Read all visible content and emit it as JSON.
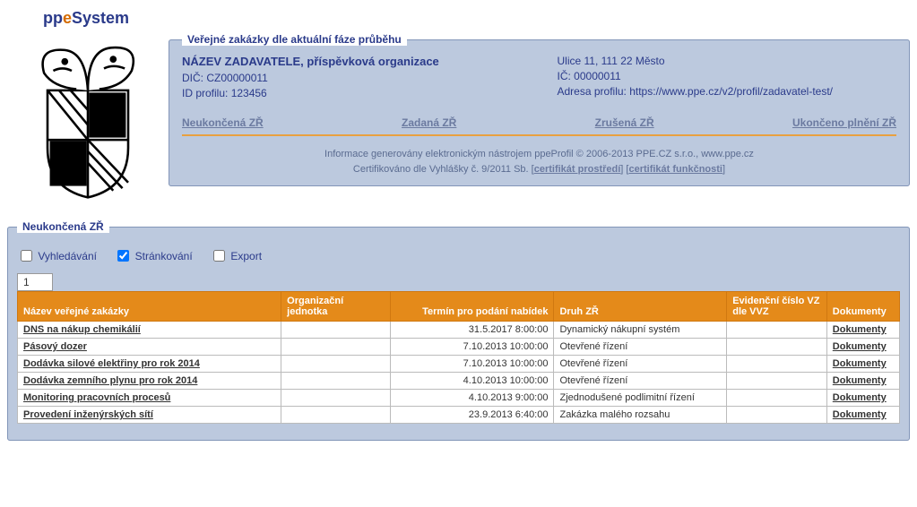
{
  "logo": {
    "p1": "pp",
    "e": "e",
    "p2": "System"
  },
  "panels": {
    "header_legend": "Veřejné zakázky dle aktuální fáze průběhu",
    "list_legend": "Neukončená ZŘ"
  },
  "org": {
    "name": "NÁZEV ZADAVATELE, příspěvková organizace",
    "dic_label": "DIČ: ",
    "dic": "CZ00000011",
    "idprofil_label": "ID profilu: ",
    "idprofil": "123456",
    "address": "Ulice 11, 111 22 Město",
    "ic_label": "IČ: ",
    "ic": "00000011",
    "profil_label": "Adresa profilu: ",
    "profil_url": "https://www.ppe.cz/v2/profil/zadavatel-test/"
  },
  "tabs": {
    "t1": "Neukončená ZŘ",
    "t2": "Zadaná ZŘ",
    "t3": "Zrušená ZŘ",
    "t4": "Ukončeno plnění ZŘ"
  },
  "footer": {
    "line1": "Informace generovány elektronickým nástrojem ppeProfil © 2006-2013 PPE.CZ s.r.o., www.ppe.cz",
    "line2a": "Certifikováno dle Vyhlášky č. 9/2011 Sb. [",
    "cert1": "certifikát prostředí",
    "line2b": "] [",
    "cert2": "certifikát funkčnosti",
    "line2c": "]"
  },
  "filters": {
    "search": "Vyhledávání",
    "paging": "Stránkování",
    "export": "Export",
    "search_checked": false,
    "paging_checked": true,
    "export_checked": false,
    "page": "1"
  },
  "table": {
    "headers": {
      "name": "Název veřejné zakázky",
      "org": "Organizační jednotka",
      "term": "Termín pro podání nabídek",
      "druh": "Druh ZŘ",
      "evid": "Evidenční číslo VZ dle VVZ",
      "doc": "Dokumenty"
    },
    "doc_label": "Dokumenty",
    "rows": [
      {
        "name": "DNS na nákup chemikálií",
        "org": "",
        "term": "31.5.2017 8:00:00",
        "druh": "Dynamický nákupní systém",
        "evid": ""
      },
      {
        "name": "Pásový dozer",
        "org": "",
        "term": "7.10.2013 10:00:00",
        "druh": "Otevřené řízení",
        "evid": ""
      },
      {
        "name": "Dodávka silové elektřiny pro rok 2014",
        "org": "",
        "term": "7.10.2013 10:00:00",
        "druh": "Otevřené řízení",
        "evid": ""
      },
      {
        "name": "Dodávka zemního plynu pro rok 2014",
        "org": "",
        "term": "4.10.2013 10:00:00",
        "druh": "Otevřené řízení",
        "evid": ""
      },
      {
        "name": "Monitoring pracovních procesů",
        "org": "",
        "term": "4.10.2013 9:00:00",
        "druh": "Zjednodušené podlimitní řízení",
        "evid": ""
      },
      {
        "name": "Provedení inženýrských sítí",
        "org": "",
        "term": "23.9.2013 6:40:00",
        "druh": "Zakázka malého rozsahu",
        "evid": ""
      }
    ]
  },
  "colors": {
    "panel_bg": "#bcc9de",
    "panel_border": "#8295b8",
    "accent_orange": "#e48a1a",
    "link": "#6b7aa0",
    "brand_blue": "#2a3a8a"
  }
}
